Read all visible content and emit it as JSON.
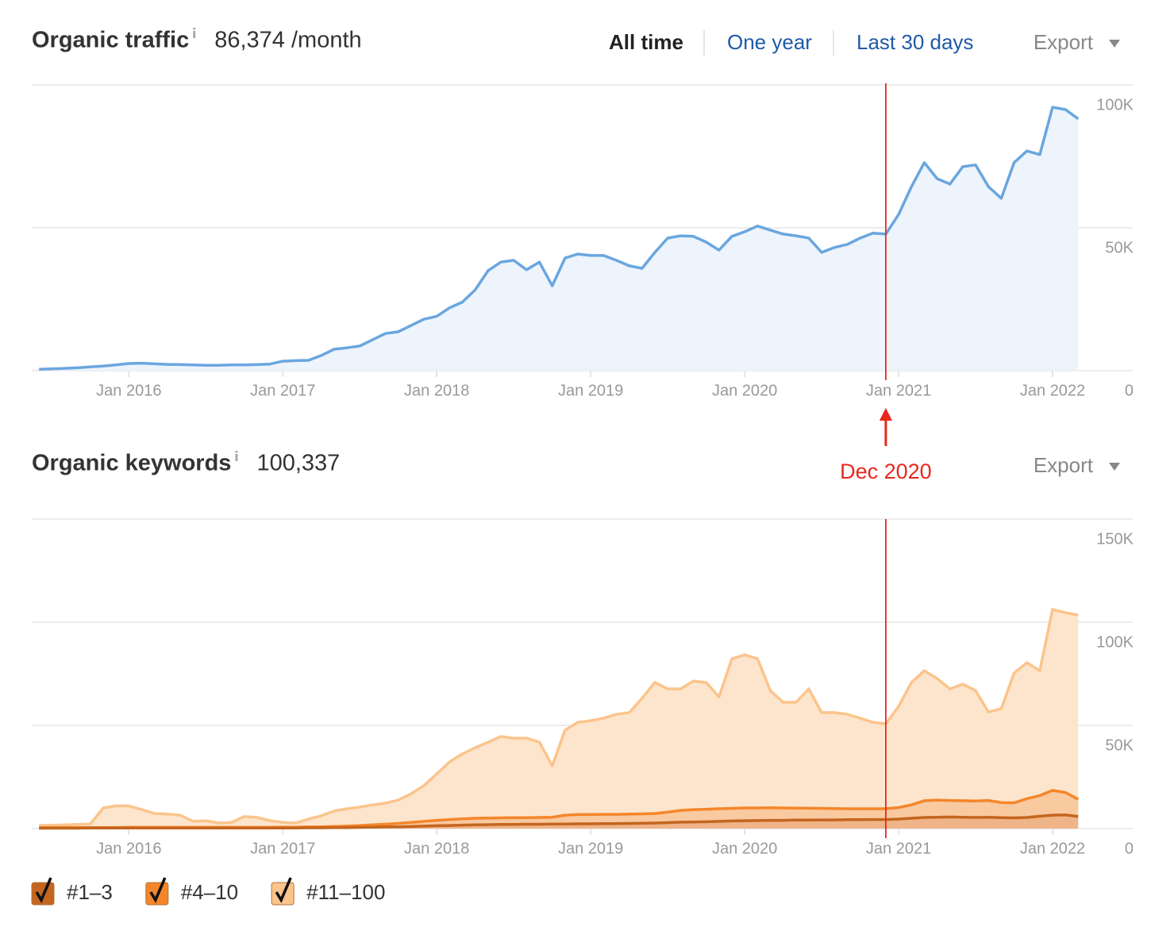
{
  "ui": {
    "tabs": [
      {
        "label": "All time",
        "active": true
      },
      {
        "label": "One year",
        "active": false
      },
      {
        "label": "Last 30 days",
        "active": false
      }
    ]
  },
  "annotation": {
    "x": "2020-12",
    "label": "Dec 2020",
    "color": "#e8281e"
  },
  "chart_data": [
    {
      "type": "area",
      "title": "Organic traffic",
      "value": "86,374 /month",
      "export": "Export",
      "x": [
        "2015-06",
        "2015-07",
        "2015-08",
        "2015-09",
        "2015-10",
        "2015-11",
        "2015-12",
        "2016-01",
        "2016-02",
        "2016-03",
        "2016-04",
        "2016-05",
        "2016-06",
        "2016-07",
        "2016-08",
        "2016-09",
        "2016-10",
        "2016-11",
        "2016-12",
        "2017-01",
        "2017-02",
        "2017-03",
        "2017-04",
        "2017-05",
        "2017-06",
        "2017-07",
        "2017-08",
        "2017-09",
        "2017-10",
        "2017-11",
        "2017-12",
        "2018-01",
        "2018-02",
        "2018-03",
        "2018-04",
        "2018-05",
        "2018-06",
        "2018-07",
        "2018-08",
        "2018-09",
        "2018-10",
        "2018-11",
        "2018-12",
        "2019-01",
        "2019-02",
        "2019-03",
        "2019-04",
        "2019-05",
        "2019-06",
        "2019-07",
        "2019-08",
        "2019-09",
        "2019-10",
        "2019-11",
        "2019-12",
        "2020-01",
        "2020-02",
        "2020-03",
        "2020-04",
        "2020-05",
        "2020-06",
        "2020-07",
        "2020-08",
        "2020-09",
        "2020-10",
        "2020-11",
        "2020-12",
        "2021-01",
        "2021-02",
        "2021-03",
        "2021-04",
        "2021-05",
        "2021-06",
        "2021-07",
        "2021-08",
        "2021-09",
        "2021-10",
        "2021-11",
        "2021-12",
        "2022-01",
        "2022-02",
        "2022-03"
      ],
      "series": [
        {
          "name": "Organic traffic",
          "color": "#6aa6e0",
          "fill": "#eef4fc",
          "values": [
            500,
            600,
            800,
            1000,
            1300,
            1600,
            2000,
            2500,
            2600,
            2400,
            2200,
            2100,
            2000,
            1900,
            1900,
            2000,
            2000,
            2100,
            2300,
            3300,
            3500,
            3600,
            5300,
            7500,
            8000,
            8600,
            10800,
            13000,
            13600,
            15800,
            18000,
            19000,
            22000,
            24000,
            28300,
            35000,
            38000,
            38600,
            35300,
            38000,
            29700,
            39400,
            40800,
            40300,
            40300,
            38600,
            36700,
            35800,
            41400,
            46400,
            47200,
            47000,
            45000,
            42200,
            47000,
            48600,
            50600,
            49200,
            47800,
            47200,
            46400,
            41400,
            43100,
            44200,
            46400,
            48100,
            47800,
            54700,
            64400,
            72800,
            67200,
            65300,
            71400,
            72000,
            64400,
            60300,
            72800,
            76900,
            75600,
            92200,
            91400,
            88100
          ]
        }
      ],
      "xlim": [
        "2015-05",
        "2022-07"
      ],
      "xticks": [
        {
          "value": "2016-01",
          "label": "Jan 2016"
        },
        {
          "value": "2017-01",
          "label": "Jan 2017"
        },
        {
          "value": "2018-01",
          "label": "Jan 2018"
        },
        {
          "value": "2019-01",
          "label": "Jan 2019"
        },
        {
          "value": "2020-01",
          "label": "Jan 2020"
        },
        {
          "value": "2021-01",
          "label": "Jan 2021"
        },
        {
          "value": "2022-01",
          "label": "Jan 2022"
        }
      ],
      "ylim": [
        0,
        100000
      ],
      "yticks": [
        0,
        {
          "value": 50000,
          "label": "50K"
        },
        {
          "value": 100000,
          "label": "100K"
        }
      ],
      "grid": true
    },
    {
      "type": "stacked-area",
      "title": "Organic keywords",
      "value": "100,337",
      "export": "Export",
      "x": [
        "2015-06",
        "2015-07",
        "2015-08",
        "2015-09",
        "2015-10",
        "2015-11",
        "2015-12",
        "2016-01",
        "2016-02",
        "2016-03",
        "2016-04",
        "2016-05",
        "2016-06",
        "2016-07",
        "2016-08",
        "2016-09",
        "2016-10",
        "2016-11",
        "2016-12",
        "2017-01",
        "2017-02",
        "2017-03",
        "2017-04",
        "2017-05",
        "2017-06",
        "2017-07",
        "2017-08",
        "2017-09",
        "2017-10",
        "2017-11",
        "2017-12",
        "2018-01",
        "2018-02",
        "2018-03",
        "2018-04",
        "2018-05",
        "2018-06",
        "2018-07",
        "2018-08",
        "2018-09",
        "2018-10",
        "2018-11",
        "2018-12",
        "2019-01",
        "2019-02",
        "2019-03",
        "2019-04",
        "2019-05",
        "2019-06",
        "2019-07",
        "2019-08",
        "2019-09",
        "2019-10",
        "2019-11",
        "2019-12",
        "2020-01",
        "2020-02",
        "2020-03",
        "2020-04",
        "2020-05",
        "2020-06",
        "2020-07",
        "2020-08",
        "2020-09",
        "2020-10",
        "2020-11",
        "2020-12",
        "2021-01",
        "2021-02",
        "2021-03",
        "2021-04",
        "2021-05",
        "2021-06",
        "2021-07",
        "2021-08",
        "2021-09",
        "2021-10",
        "2021-11",
        "2021-12",
        "2022-01",
        "2022-02",
        "2022-03"
      ],
      "series": [
        {
          "name": "#1–3",
          "color": "#c4661f",
          "fill": "#efb488",
          "values": [
            200,
            200,
            200,
            200,
            300,
            300,
            300,
            300,
            300,
            300,
            300,
            300,
            300,
            300,
            300,
            300,
            300,
            300,
            300,
            300,
            300,
            400,
            400,
            500,
            500,
            600,
            700,
            800,
            900,
            1000,
            1200,
            1400,
            1500,
            1700,
            1800,
            1900,
            2000,
            2000,
            2100,
            2100,
            2200,
            2200,
            2300,
            2300,
            2400,
            2400,
            2500,
            2600,
            2700,
            2900,
            3100,
            3200,
            3300,
            3500,
            3700,
            3800,
            3900,
            4000,
            4000,
            4100,
            4100,
            4200,
            4200,
            4300,
            4300,
            4400,
            4400,
            4600,
            5000,
            5400,
            5500,
            5600,
            5500,
            5400,
            5500,
            5300,
            5200,
            5400,
            6000,
            6500,
            6600,
            5900
          ]
        },
        {
          "name": "#4–10",
          "color": "#f4862a",
          "fill": "#f9c9a0",
          "values": [
            300,
            300,
            300,
            300,
            200,
            200,
            200,
            300,
            300,
            300,
            300,
            300,
            300,
            300,
            300,
            300,
            300,
            300,
            300,
            400,
            400,
            400,
            500,
            500,
            700,
            900,
            1100,
            1300,
            1600,
            2000,
            2300,
            2600,
            2900,
            3000,
            3200,
            3200,
            3200,
            3300,
            3200,
            3300,
            3300,
            4300,
            4500,
            4500,
            4500,
            4500,
            4500,
            4500,
            4600,
            5100,
            5700,
            6000,
            6100,
            6100,
            6100,
            6200,
            6100,
            6100,
            6000,
            5800,
            5800,
            5600,
            5500,
            5300,
            5300,
            5200,
            5200,
            5600,
            6500,
            8100,
            8300,
            8000,
            8000,
            8000,
            8100,
            7300,
            7300,
            9100,
            10000,
            12000,
            10900,
            8300
          ]
        },
        {
          "name": "#11–100",
          "color": "#fbc48c",
          "fill": "#fde5cd",
          "values": [
            1000,
            1100,
            1300,
            1500,
            1700,
            9500,
            10500,
            10400,
            8600,
            6700,
            6400,
            5900,
            2900,
            3200,
            2100,
            2400,
            5200,
            4800,
            3200,
            2300,
            2000,
            3800,
            5300,
            7500,
            8400,
            8900,
            9700,
            10200,
            11300,
            13900,
            17300,
            22500,
            27900,
            31500,
            34200,
            36800,
            39400,
            38500,
            38500,
            36500,
            24900,
            41200,
            44700,
            45500,
            46600,
            48500,
            49200,
            56000,
            63500,
            59700,
            58900,
            62300,
            61400,
            54200,
            72500,
            74200,
            72300,
            56800,
            51200,
            51300,
            57800,
            46400,
            46500,
            45800,
            43900,
            41900,
            41200,
            49000,
            59300,
            63000,
            58900,
            54100,
            56500,
            53500,
            42900,
            45500,
            62900,
            65900,
            60500,
            87700,
            87100,
            89300
          ]
        }
      ],
      "xlim": [
        "2015-05",
        "2022-07"
      ],
      "xticks": [
        {
          "value": "2016-01",
          "label": "Jan 2016"
        },
        {
          "value": "2017-01",
          "label": "Jan 2017"
        },
        {
          "value": "2018-01",
          "label": "Jan 2018"
        },
        {
          "value": "2019-01",
          "label": "Jan 2019"
        },
        {
          "value": "2020-01",
          "label": "Jan 2020"
        },
        {
          "value": "2021-01",
          "label": "Jan 2021"
        },
        {
          "value": "2022-01",
          "label": "Jan 2022"
        }
      ],
      "ylim": [
        0,
        150000
      ],
      "yticks": [
        0,
        {
          "value": 50000,
          "label": "50K"
        },
        {
          "value": 100000,
          "label": "100K"
        },
        {
          "value": 150000,
          "label": "150K"
        }
      ],
      "grid": true,
      "legend": "bottom-left"
    }
  ]
}
